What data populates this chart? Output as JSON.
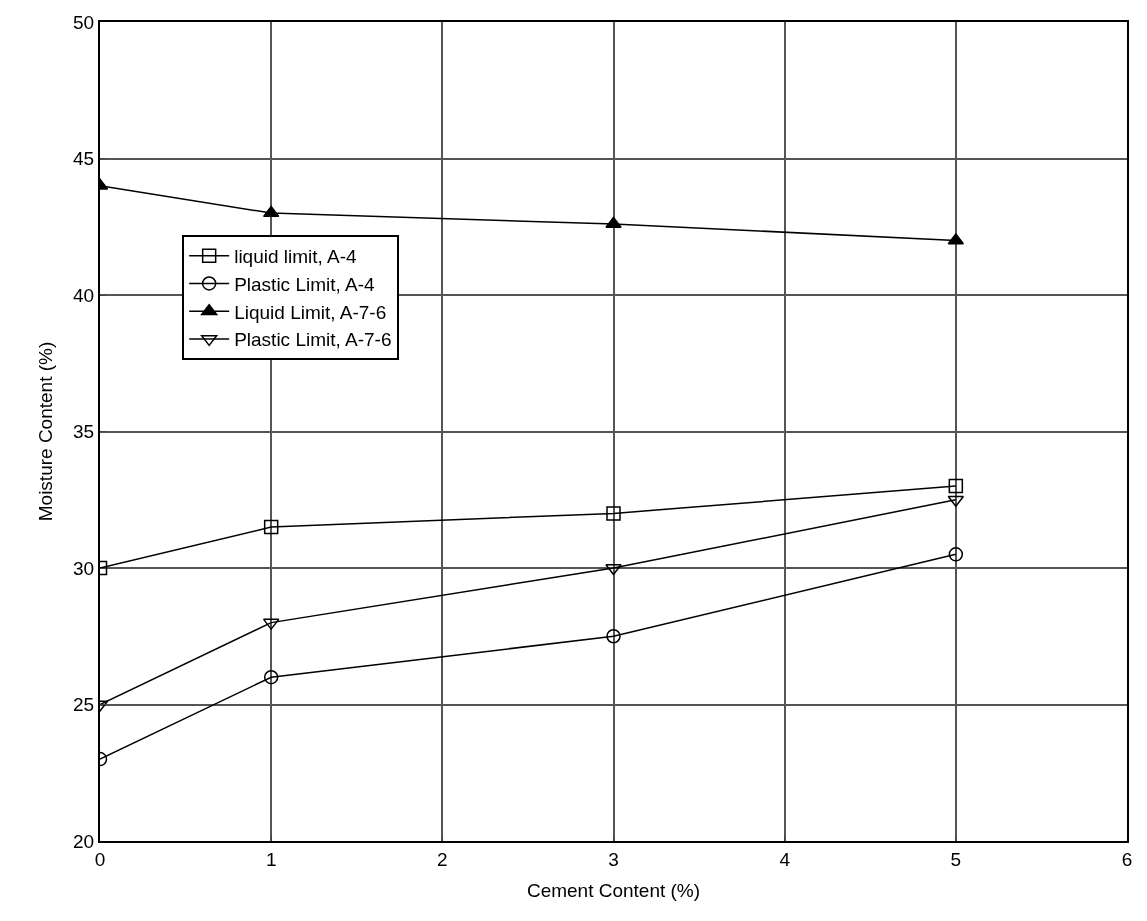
{
  "chart_data": {
    "type": "line",
    "xlabel": "Cement Content (%)",
    "ylabel": "Moisture Content (%)",
    "x": [
      0,
      1,
      3,
      5
    ],
    "series": [
      {
        "name": "liquid limit, A-4",
        "color": "#000000",
        "marker": "square",
        "values": [
          30,
          31.5,
          32,
          33
        ]
      },
      {
        "name": "Plastic Limit, A-4",
        "color": "#000000",
        "marker": "circle",
        "values": [
          23,
          26,
          27.5,
          30.5
        ]
      },
      {
        "name": "Liquid Limit, A-7-6",
        "color": "#000000",
        "marker": "triangle",
        "values": [
          44,
          43,
          42.6,
          42
        ]
      },
      {
        "name": "Plastic Limit, A-7-6",
        "color": "#000000",
        "marker": "triangle-down",
        "values": [
          25,
          28,
          30,
          32.5
        ]
      }
    ],
    "xlim": [
      0,
      6
    ],
    "xticks": [
      0,
      1,
      2,
      3,
      4,
      5,
      6
    ],
    "ylim": [
      20,
      50
    ],
    "yticks": [
      20,
      25,
      30,
      35,
      40,
      45,
      50
    ],
    "grid": true,
    "legend": "left",
    "line_style": "solid"
  }
}
